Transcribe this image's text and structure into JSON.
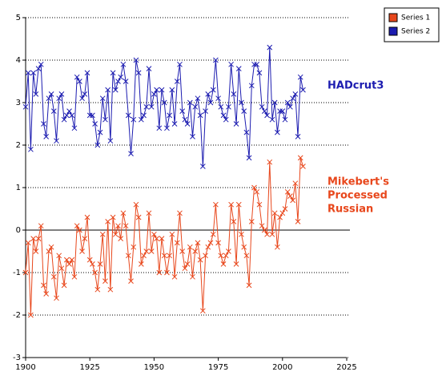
{
  "chart_data": {
    "type": "line",
    "x": [
      1900,
      1901,
      1902,
      1903,
      1904,
      1905,
      1906,
      1907,
      1908,
      1909,
      1910,
      1911,
      1912,
      1913,
      1914,
      1915,
      1916,
      1917,
      1918,
      1919,
      1920,
      1921,
      1922,
      1923,
      1924,
      1925,
      1926,
      1927,
      1928,
      1929,
      1930,
      1931,
      1932,
      1933,
      1934,
      1935,
      1936,
      1937,
      1938,
      1939,
      1940,
      1941,
      1942,
      1943,
      1944,
      1945,
      1946,
      1947,
      1948,
      1949,
      1950,
      1951,
      1952,
      1953,
      1954,
      1955,
      1956,
      1957,
      1958,
      1959,
      1960,
      1961,
      1962,
      1963,
      1964,
      1965,
      1966,
      1967,
      1968,
      1969,
      1970,
      1971,
      1972,
      1973,
      1974,
      1975,
      1976,
      1977,
      1978,
      1979,
      1980,
      1981,
      1982,
      1983,
      1984,
      1985,
      1986,
      1987,
      1988,
      1989,
      1990,
      1991,
      1992,
      1993,
      1994,
      1995,
      1996,
      1997,
      1998,
      1999,
      2000,
      2001,
      2002,
      2003,
      2004,
      2005,
      2006,
      2007,
      2008
    ],
    "series": [
      {
        "name": "Series 1",
        "color": "#e8471c",
        "values": [
          -1.0,
          -0.3,
          -2.0,
          -0.2,
          -0.5,
          -0.2,
          0.1,
          -1.3,
          -1.5,
          -0.5,
          -0.4,
          -1.1,
          -1.6,
          -0.6,
          -0.9,
          -1.3,
          -0.7,
          -0.8,
          -0.7,
          -1.1,
          0.1,
          0.0,
          -0.5,
          -0.2,
          0.3,
          -0.7,
          -0.8,
          -1.0,
          -1.4,
          -0.8,
          -0.1,
          -1.2,
          0.2,
          -1.4,
          0.3,
          -0.1,
          0.1,
          -0.2,
          0.4,
          0.1,
          -0.6,
          -1.2,
          -0.4,
          0.6,
          0.3,
          -0.8,
          -0.6,
          -0.5,
          0.4,
          -0.5,
          -0.1,
          -0.2,
          -1.0,
          -0.2,
          -0.6,
          -1.0,
          -0.6,
          -0.1,
          -1.1,
          -0.3,
          0.4,
          -0.5,
          -0.9,
          -0.8,
          -0.4,
          -1.1,
          -0.5,
          -0.3,
          -0.7,
          -1.9,
          -0.6,
          -0.4,
          -0.3,
          -0.1,
          0.6,
          -0.3,
          -0.6,
          -0.8,
          -0.6,
          -0.5,
          0.6,
          0.2,
          -0.8,
          0.6,
          -0.1,
          -0.4,
          -0.6,
          -1.3,
          0.2,
          1.0,
          0.9,
          0.6,
          0.1,
          0.0,
          -0.1,
          1.6,
          -0.1,
          0.4,
          -0.4,
          0.3,
          0.4,
          0.5,
          0.9,
          0.8,
          0.7,
          1.1,
          0.2,
          1.7,
          1.5
        ]
      },
      {
        "name": "Series 2",
        "color": "#1c1cb0",
        "values": [
          2.9,
          3.7,
          1.9,
          3.7,
          3.2,
          3.8,
          3.9,
          2.5,
          2.2,
          3.1,
          3.2,
          2.8,
          2.1,
          3.1,
          3.2,
          2.6,
          2.7,
          2.8,
          2.7,
          2.4,
          3.6,
          3.5,
          3.1,
          3.2,
          3.7,
          2.7,
          2.7,
          2.5,
          2.0,
          2.3,
          3.1,
          2.6,
          3.3,
          2.1,
          3.7,
          3.3,
          3.5,
          3.6,
          3.9,
          3.5,
          2.7,
          1.8,
          2.6,
          4.0,
          3.7,
          2.6,
          2.7,
          2.9,
          3.8,
          2.9,
          3.2,
          3.3,
          2.4,
          3.3,
          3.0,
          2.4,
          2.7,
          3.3,
          2.5,
          3.5,
          3.9,
          2.8,
          2.6,
          2.5,
          3.0,
          2.2,
          2.9,
          3.1,
          2.7,
          1.5,
          2.8,
          3.2,
          3.0,
          3.3,
          4.0,
          3.1,
          2.9,
          2.7,
          2.6,
          2.9,
          3.9,
          3.2,
          2.5,
          3.8,
          3.0,
          2.8,
          2.3,
          1.7,
          3.4,
          3.9,
          3.9,
          3.7,
          2.9,
          2.8,
          2.7,
          4.3,
          2.6,
          3.0,
          2.3,
          2.8,
          2.8,
          2.6,
          3.0,
          2.9,
          3.1,
          3.2,
          2.2,
          3.6,
          3.3
        ]
      }
    ],
    "xlim": [
      1900,
      2025
    ],
    "xticks": [
      1900,
      1925,
      1950,
      1975,
      2000,
      2025
    ],
    "ylim": [
      -3,
      5
    ],
    "yticks": [
      -3,
      -2,
      -1,
      0,
      1,
      2,
      3,
      4,
      5
    ],
    "grid": true,
    "legend": "top-right",
    "annotations": [
      {
        "lines": [
          "HADcrut3"
        ],
        "color": "#1c1cb0"
      },
      {
        "lines": [
          "Mikebert's",
          "Processed",
          "Russian"
        ],
        "color": "#e8471c"
      }
    ]
  }
}
